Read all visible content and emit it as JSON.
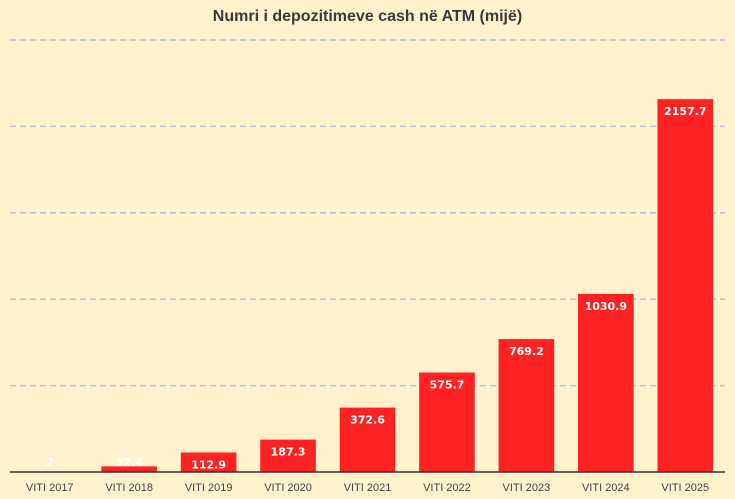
{
  "chart_data": {
    "type": "bar",
    "title": "Numri i depozitimeve cash në ATM (mijë)",
    "xlabel": "",
    "ylabel": "",
    "categories": [
      "VITI 2017",
      "VITI 2018",
      "VITI 2019",
      "VITI 2020",
      "VITI 2021",
      "VITI 2022",
      "VITI 2023",
      "VITI 2024",
      "VITI 2025"
    ],
    "values": [
      2,
      32.4,
      112.9,
      187.3,
      372.6,
      575.7,
      769.2,
      1030.9,
      2157.7
    ],
    "data_labels": [
      "2",
      "32.4",
      "112.9",
      "187.3",
      "372.6",
      "575.7",
      "769.2",
      "1030.9",
      "2157.7"
    ],
    "ylim": [
      0,
      2500
    ],
    "grid": true,
    "legend": "none",
    "colors": {
      "bar": "#FF2222",
      "background": "#FFF2CC",
      "gridline": "#B8C8D8",
      "axis": "#333333"
    }
  }
}
